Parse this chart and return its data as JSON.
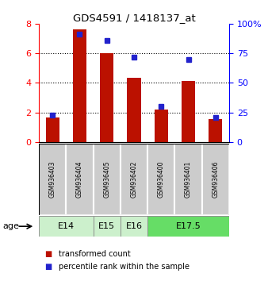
{
  "title": "GDS4591 / 1418137_at",
  "samples": [
    "GSM936403",
    "GSM936404",
    "GSM936405",
    "GSM936402",
    "GSM936400",
    "GSM936401",
    "GSM936406"
  ],
  "transformed_count": [
    1.65,
    7.65,
    6.0,
    4.35,
    2.2,
    4.15,
    1.55
  ],
  "percentile_rank": [
    23,
    91,
    86,
    72,
    30,
    70,
    21
  ],
  "age_groups": [
    {
      "label": "E14",
      "samples": [
        "GSM936403",
        "GSM936404"
      ],
      "color": "#ccf0cc"
    },
    {
      "label": "E15",
      "samples": [
        "GSM936405"
      ],
      "color": "#ccf0cc"
    },
    {
      "label": "E16",
      "samples": [
        "GSM936402"
      ],
      "color": "#ccf0cc"
    },
    {
      "label": "E17.5",
      "samples": [
        "GSM936400",
        "GSM936401",
        "GSM936406"
      ],
      "color": "#66dd66"
    }
  ],
  "bar_color": "#bb1100",
  "dot_color": "#2222cc",
  "left_ylim": [
    0,
    8
  ],
  "right_ylim": [
    0,
    100
  ],
  "left_yticks": [
    0,
    2,
    4,
    6,
    8
  ],
  "right_yticks": [
    0,
    25,
    50,
    75,
    100
  ],
  "right_yticklabels": [
    "0",
    "25",
    "50",
    "75",
    "100%"
  ],
  "bg_color": "#ffffff",
  "legend_red_label": "transformed count",
  "legend_blue_label": "percentile rank within the sample",
  "age_label": "age",
  "sample_box_color": "#cccccc",
  "sample_box_edge": "#aaaaaa"
}
